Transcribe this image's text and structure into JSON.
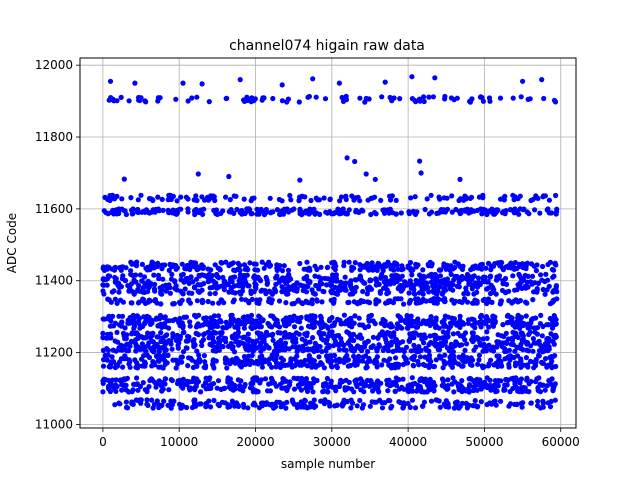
{
  "chart_data": {
    "type": "scatter",
    "title": "channel074 higain raw data",
    "xlabel": "sample number",
    "ylabel": "ADC Code",
    "xlim": [
      -3000,
      62000
    ],
    "ylim": [
      10990,
      12020
    ],
    "x_ticks": [
      0,
      10000,
      20000,
      30000,
      40000,
      50000,
      60000
    ],
    "y_ticks": [
      11000,
      11200,
      11400,
      11600,
      11800,
      12000
    ],
    "x_tick_labels": [
      "0",
      "10000",
      "20000",
      "30000",
      "40000",
      "50000",
      "60000"
    ],
    "y_tick_labels": [
      "11000",
      "11200",
      "11400",
      "11600",
      "11800",
      "12000"
    ],
    "grid": true,
    "legend": "none",
    "marker_color": "#0000ff",
    "sample_range": [
      0,
      59500
    ],
    "dense_bands": [
      {
        "y_center": 11440,
        "halfwidth": 12
      },
      {
        "y_center": 11390,
        "halfwidth": 28
      },
      {
        "y_center": 11343,
        "halfwidth": 8
      },
      {
        "y_center": 11292,
        "halfwidth": 12
      },
      {
        "y_center": 11275,
        "halfwidth": 8
      },
      {
        "y_center": 11230,
        "halfwidth": 28
      },
      {
        "y_center": 11175,
        "halfwidth": 18
      },
      {
        "y_center": 11110,
        "halfwidth": 20
      }
    ],
    "sparse_bands": [
      {
        "y_center": 11905,
        "halfwidth": 8,
        "count": 90
      },
      {
        "y_center": 11630,
        "halfwidth": 8,
        "count": 130
      },
      {
        "y_center": 11592,
        "halfwidth": 8,
        "count": 260
      },
      {
        "y_center": 11057,
        "halfwidth": 12,
        "count": 220
      }
    ],
    "outliers": [
      {
        "x": 1000,
        "y": 11955
      },
      {
        "x": 4200,
        "y": 11950
      },
      {
        "x": 10500,
        "y": 11950
      },
      {
        "x": 13000,
        "y": 11948
      },
      {
        "x": 18000,
        "y": 11960
      },
      {
        "x": 23500,
        "y": 11945
      },
      {
        "x": 27500,
        "y": 11962
      },
      {
        "x": 31000,
        "y": 11950
      },
      {
        "x": 37000,
        "y": 11953
      },
      {
        "x": 40500,
        "y": 11968
      },
      {
        "x": 43500,
        "y": 11965
      },
      {
        "x": 55000,
        "y": 11955
      },
      {
        "x": 57500,
        "y": 11960
      },
      {
        "x": 2800,
        "y": 11683
      },
      {
        "x": 12500,
        "y": 11697
      },
      {
        "x": 16500,
        "y": 11690
      },
      {
        "x": 25800,
        "y": 11680
      },
      {
        "x": 32000,
        "y": 11742
      },
      {
        "x": 33000,
        "y": 11732
      },
      {
        "x": 34500,
        "y": 11697
      },
      {
        "x": 35700,
        "y": 11682
      },
      {
        "x": 41500,
        "y": 11733
      },
      {
        "x": 41700,
        "y": 11700
      },
      {
        "x": 46800,
        "y": 11682
      }
    ]
  }
}
